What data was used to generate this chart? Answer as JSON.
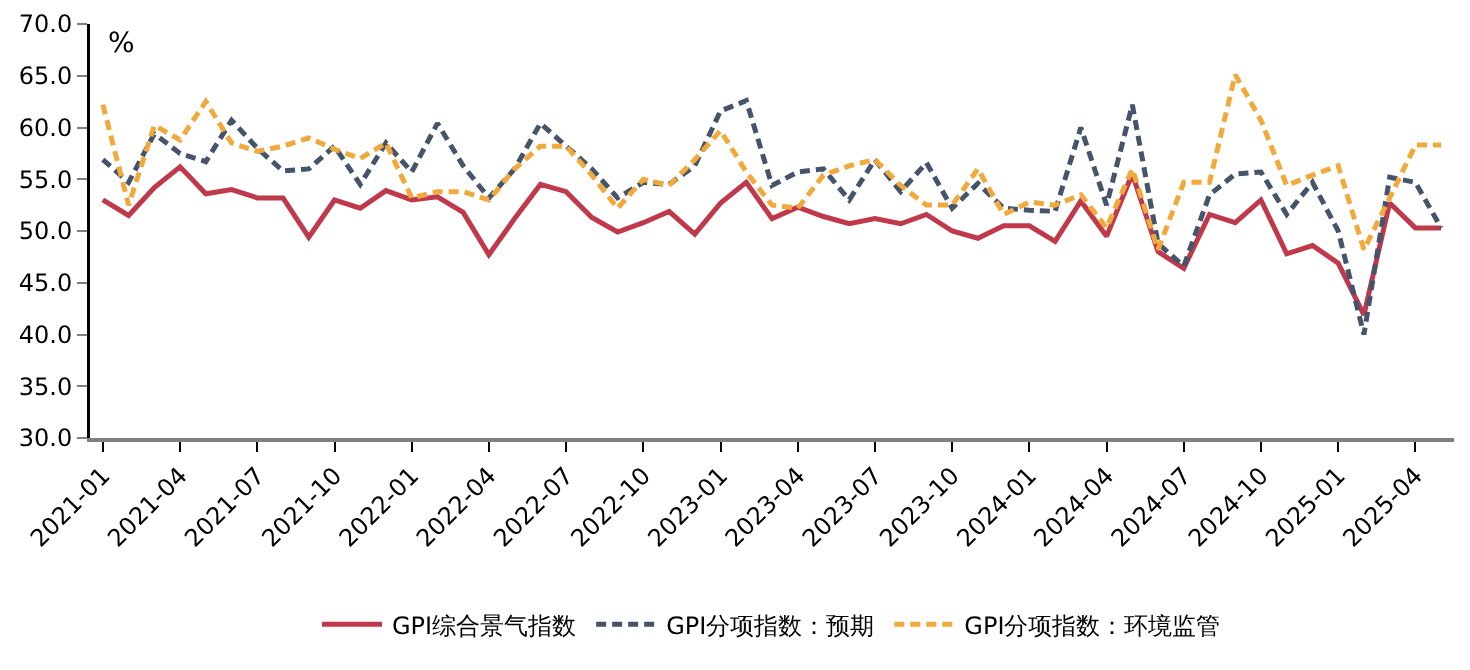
{
  "chart_data": {
    "type": "line",
    "ylabel": "%",
    "categories": [
      "2021-01",
      null,
      null,
      "2021-04",
      null,
      null,
      "2021-07",
      null,
      null,
      "2021-10",
      null,
      null,
      "2022-01",
      null,
      null,
      "2022-04",
      null,
      null,
      "2022-07",
      null,
      null,
      "2022-10",
      null,
      null,
      "2023-01",
      null,
      null,
      "2023-04",
      null,
      null,
      "2023-07",
      null,
      null,
      "2023-10",
      null,
      null,
      "2024-01",
      null,
      null,
      "2024-04",
      null,
      null,
      "2024-07",
      null,
      null,
      "2024-10",
      null,
      null,
      "2025-01",
      null,
      null,
      "2025-04",
      null
    ],
    "series": [
      {
        "name": "GPI综合景气指数",
        "color": "#c0394b",
        "line_style": "solid",
        "values": [
          53.0,
          51.5,
          54.2,
          56.2,
          53.6,
          54.0,
          53.2,
          53.2,
          49.4,
          53.0,
          52.2,
          53.9,
          53.0,
          53.3,
          51.8,
          47.7,
          51.2,
          54.5,
          53.8,
          51.3,
          49.9,
          50.8,
          51.9,
          49.7,
          52.7,
          54.7,
          51.2,
          52.3,
          51.4,
          50.7,
          51.2,
          50.7,
          51.6,
          50.0,
          49.3,
          50.5,
          50.5,
          49.0,
          52.9,
          49.5,
          55.5,
          48.0,
          46.4,
          51.6,
          50.8,
          53.0,
          47.8,
          48.6,
          46.9,
          41.9,
          52.7,
          50.3,
          50.3
        ]
      },
      {
        "name": "GPI分项指数：预期",
        "color": "#44546a",
        "line_style": "dashed",
        "values": [
          56.9,
          54.7,
          59.4,
          57.5,
          56.7,
          60.7,
          58.0,
          55.8,
          56.0,
          58.2,
          54.5,
          58.5,
          55.7,
          60.4,
          56.3,
          53.2,
          56.0,
          60.4,
          58.2,
          56.0,
          53.2,
          54.7,
          54.5,
          56.3,
          61.6,
          62.6,
          54.4,
          55.7,
          56.0,
          53.0,
          56.9,
          53.8,
          56.6,
          52.2,
          54.6,
          52.2,
          52.0,
          51.9,
          60.0,
          52.5,
          62.2,
          48.8,
          46.6,
          53.5,
          55.5,
          55.7,
          51.6,
          54.7,
          50.0,
          40.0,
          55.2,
          54.7,
          50.3
        ]
      },
      {
        "name": "GPI分项指数：环境监管",
        "color": "#f2a93b",
        "line_style": "dashed",
        "values": [
          62.2,
          52.5,
          60.2,
          58.8,
          62.5,
          58.5,
          57.7,
          58.2,
          59.0,
          57.9,
          57.0,
          58.5,
          53.2,
          53.8,
          53.8,
          53.0,
          56.0,
          58.2,
          58.2,
          55.4,
          52.2,
          55.0,
          54.4,
          56.9,
          59.7,
          55.7,
          52.5,
          52.2,
          55.4,
          56.3,
          56.9,
          54.4,
          52.5,
          52.5,
          56.0,
          51.6,
          52.8,
          52.5,
          53.5,
          50.3,
          56.0,
          48.2,
          54.7,
          54.7,
          65.1,
          60.7,
          54.4,
          55.4,
          56.3,
          48.2,
          53.2,
          58.3,
          58.3
        ]
      }
    ],
    "ylim": [
      30,
      70
    ],
    "yticks": [
      {
        "value": 30,
        "label": "30.0"
      },
      {
        "value": 35,
        "label": "35.0"
      },
      {
        "value": 40,
        "label": "40.0"
      },
      {
        "value": 45,
        "label": "45.0"
      },
      {
        "value": 50,
        "label": "50.0"
      },
      {
        "value": 55,
        "label": "55.0"
      },
      {
        "value": 60,
        "label": "60.0"
      },
      {
        "value": 65,
        "label": "65.0"
      },
      {
        "value": 70,
        "label": "70.0"
      }
    ],
    "grid": false,
    "legend": "bottom",
    "marker": "none"
  }
}
